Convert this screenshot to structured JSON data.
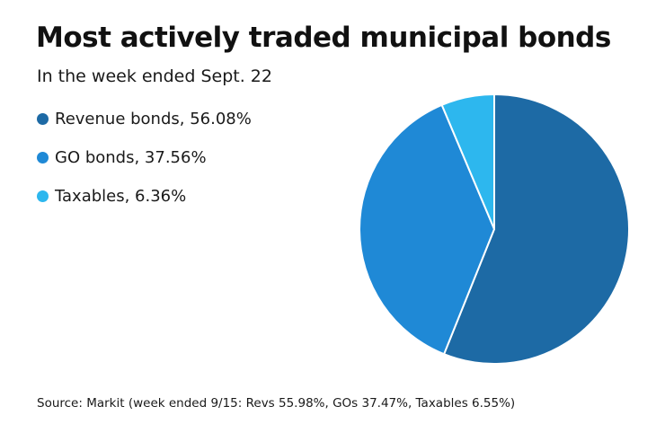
{
  "chart_data": {
    "type": "pie",
    "title": "Most actively traded municipal bonds",
    "subtitle": "In the week ended Sept. 22",
    "slices": [
      {
        "label": "Revenue bonds, 56.08%",
        "name": "Revenue bonds",
        "value": 56.08,
        "color": "#1d6aa5"
      },
      {
        "label": "GO bonds, 37.56%",
        "name": "GO bonds",
        "value": 37.56,
        "color": "#1f89d6"
      },
      {
        "label": "Taxables, 6.36%",
        "name": "Taxables",
        "value": 6.36,
        "color": "#2db7ee"
      }
    ],
    "legend_position": "top-left",
    "start_angle": "12 o'clock",
    "direction": "clockwise",
    "source": "Source: Markit (week ended 9/15: Revs 55.98%, GOs 37.47%, Taxables 6.55%)"
  }
}
